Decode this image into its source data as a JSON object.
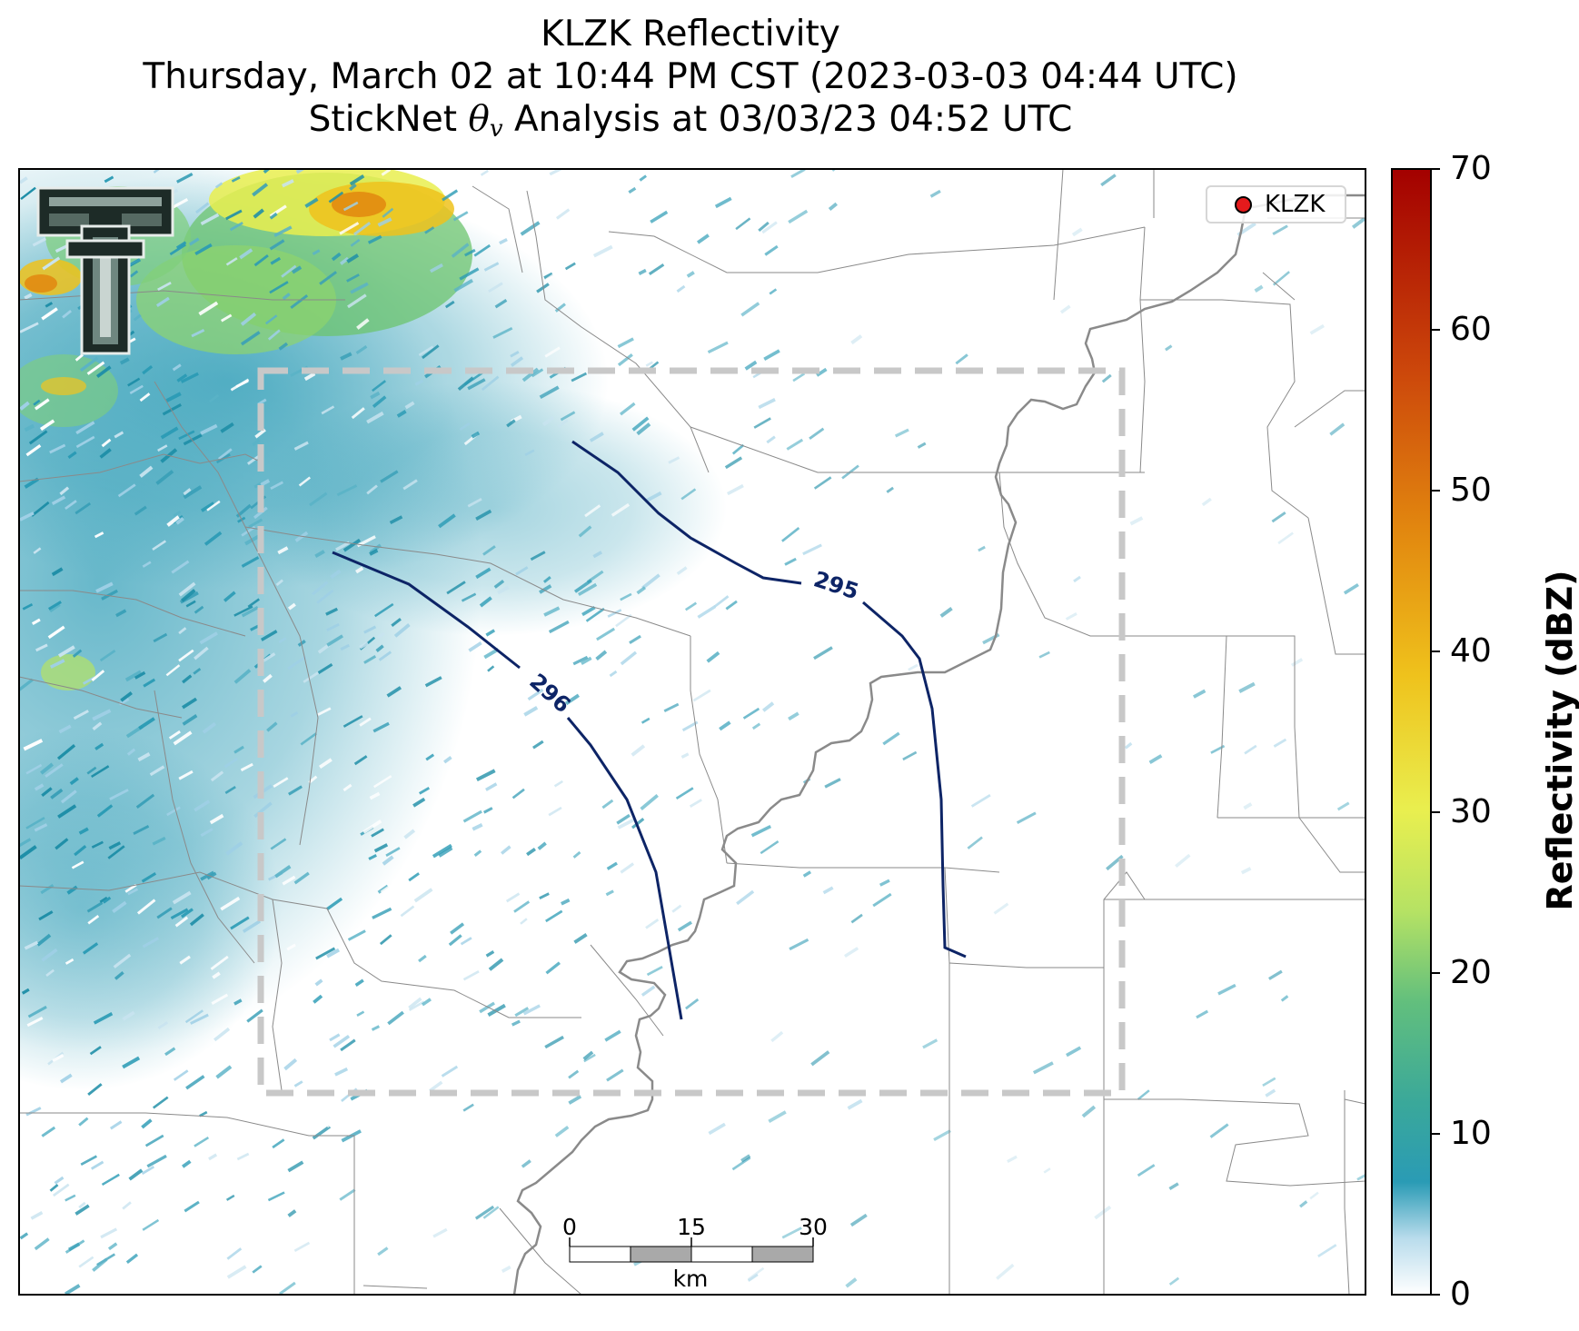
{
  "title": {
    "line1": "KLZK Reflectivity",
    "line2": "Thursday, March 02 at 10:44 PM CST (2023-03-03 04:44 UTC)",
    "line3_prefix": "StickNet ",
    "line3_symbol": "θ",
    "line3_subscript": "v",
    "line3_suffix": " Analysis at 03/03/23 04:52 UTC"
  },
  "legend": {
    "label": "KLZK",
    "marker_color": "#e41a1c"
  },
  "colorbar": {
    "label": "Reflectivity (dBZ)",
    "min": 0,
    "max": 70,
    "ticks": [
      "0",
      "10",
      "20",
      "30",
      "40",
      "50",
      "60",
      "70"
    ],
    "colors": [
      "#ffffff",
      "#9fd0e6",
      "#2a9bb5",
      "#3aa89a",
      "#7fcf7a",
      "#dff25a",
      "#f2c41c",
      "#e2850f",
      "#c9410a",
      "#a30000"
    ]
  },
  "contours": [
    {
      "value": "295",
      "label": "295",
      "color": "#0d2466"
    },
    {
      "value": "296",
      "label": "296",
      "color": "#0d2466"
    }
  ],
  "scale_bar": {
    "ticks": [
      "0",
      "15",
      "30"
    ],
    "unit": "km"
  },
  "logo": {
    "icon": "texas-tech-double-t-logo"
  },
  "analysis_box": {
    "style": "dashed",
    "color": "#c8c8c8"
  }
}
